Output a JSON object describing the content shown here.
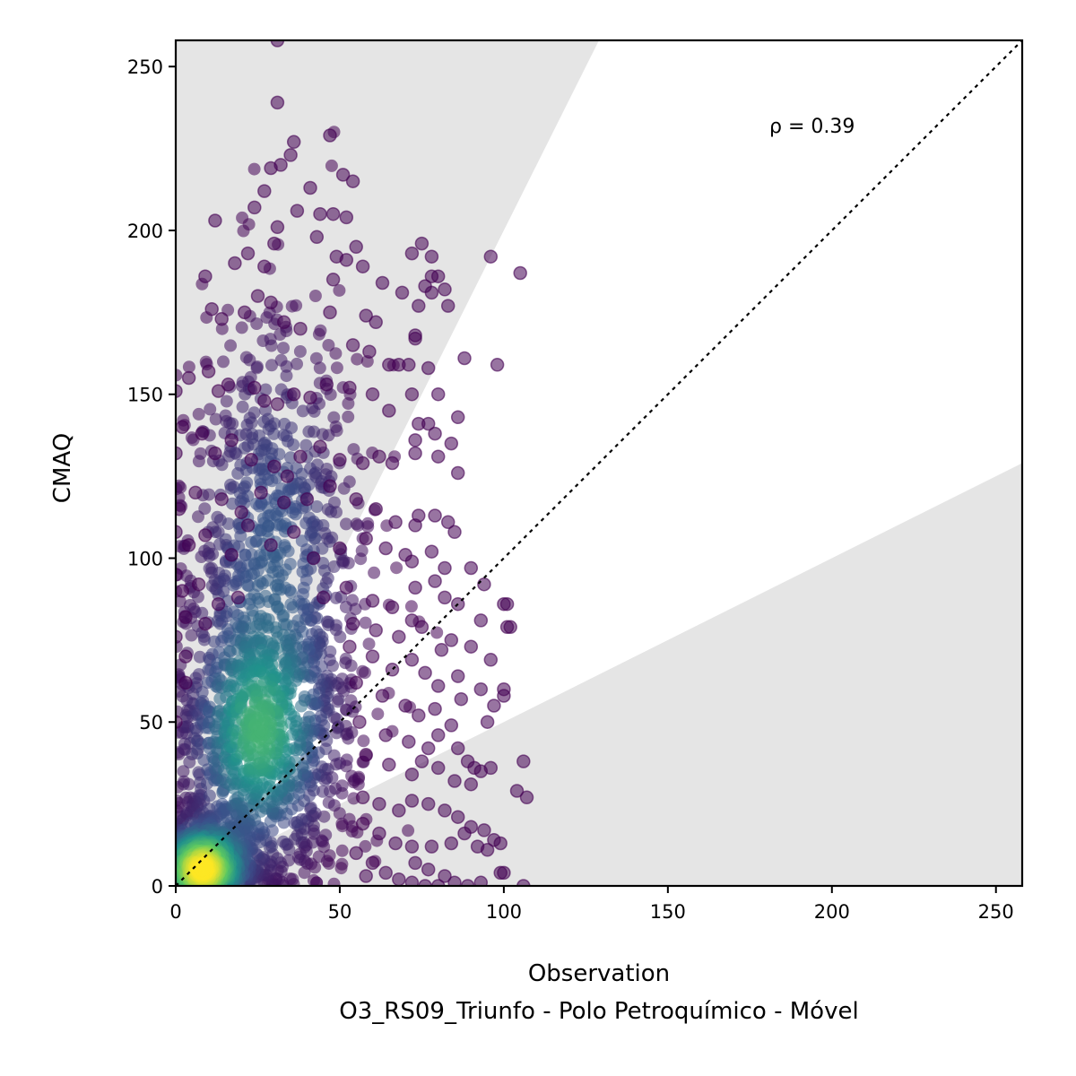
{
  "chart_data": {
    "type": "scatter",
    "title": "",
    "xlabel": "Observation",
    "subtitle": "O3_RS09_Triunfo - Polo Petroquímico - Móvel",
    "ylabel": "CMAQ",
    "xlim": [
      0,
      258
    ],
    "ylim": [
      0,
      258
    ],
    "xticks": [
      0,
      50,
      100,
      150,
      200,
      250
    ],
    "yticks": [
      0,
      50,
      100,
      150,
      200,
      250
    ],
    "annotation": "ρ = 0.39",
    "reference_line": {
      "style": "dotted",
      "slope": 1,
      "color": "#000000"
    },
    "acceptance_band": {
      "lower_slope": 0.5,
      "upper_slope": 2,
      "shaded_outside": true,
      "shade_color": "#e5e5e5"
    },
    "colormap": "viridis",
    "colormap_stops": [
      "#440154",
      "#3b528b",
      "#21918c",
      "#5ec962",
      "#fde725"
    ],
    "density_centers": [
      {
        "x": 8,
        "y": 5,
        "density": 1.0
      },
      {
        "x": 25,
        "y": 45,
        "density": 0.55
      },
      {
        "x": 30,
        "y": 100,
        "density": 0.3
      }
    ],
    "points": [
      [
        31,
        258
      ],
      [
        31,
        239
      ],
      [
        36,
        227
      ],
      [
        35,
        223
      ],
      [
        47,
        229
      ],
      [
        29,
        219
      ],
      [
        32,
        220
      ],
      [
        51,
        217
      ],
      [
        54,
        215
      ],
      [
        41,
        213
      ],
      [
        27,
        212
      ],
      [
        24,
        207
      ],
      [
        37,
        206
      ],
      [
        44,
        205
      ],
      [
        48,
        205
      ],
      [
        52,
        204
      ],
      [
        12,
        203
      ],
      [
        31,
        201
      ],
      [
        30,
        196
      ],
      [
        22,
        193
      ],
      [
        27,
        189
      ],
      [
        18,
        190
      ],
      [
        43,
        198
      ],
      [
        55,
        195
      ],
      [
        49,
        192
      ],
      [
        52,
        191
      ],
      [
        57,
        189
      ],
      [
        75,
        196
      ],
      [
        72,
        193
      ],
      [
        78,
        192
      ],
      [
        96,
        192
      ],
      [
        105,
        187
      ],
      [
        48,
        185
      ],
      [
        63,
        184
      ],
      [
        82,
        182
      ],
      [
        69,
        181
      ],
      [
        78,
        186
      ],
      [
        80,
        186
      ],
      [
        9,
        186
      ],
      [
        14,
        173
      ],
      [
        11,
        176
      ],
      [
        21,
        175
      ],
      [
        25,
        180
      ],
      [
        29,
        178
      ],
      [
        33,
        172
      ],
      [
        38,
        170
      ],
      [
        47,
        175
      ],
      [
        58,
        174
      ],
      [
        61,
        172
      ],
      [
        73,
        167
      ],
      [
        73,
        168
      ],
      [
        83,
        177
      ],
      [
        74,
        177
      ],
      [
        78,
        181
      ],
      [
        76,
        183
      ],
      [
        54,
        165
      ],
      [
        59,
        163
      ],
      [
        65,
        159
      ],
      [
        68,
        159
      ],
      [
        71,
        159
      ],
      [
        77,
        158
      ],
      [
        88,
        161
      ],
      [
        98,
        159
      ],
      [
        4,
        155
      ],
      [
        10,
        157
      ],
      [
        13,
        151
      ],
      [
        16,
        153
      ],
      [
        24,
        152
      ],
      [
        27,
        148
      ],
      [
        31,
        147
      ],
      [
        36,
        150
      ],
      [
        41,
        149
      ],
      [
        46,
        153
      ],
      [
        53,
        152
      ],
      [
        60,
        150
      ],
      [
        72,
        150
      ],
      [
        80,
        150
      ],
      [
        65,
        145
      ],
      [
        74,
        141
      ],
      [
        77,
        141
      ],
      [
        79,
        138
      ],
      [
        86,
        143
      ],
      [
        84,
        135
      ],
      [
        0,
        151
      ],
      [
        2,
        140
      ],
      [
        8,
        138
      ],
      [
        12,
        132
      ],
      [
        17,
        136
      ],
      [
        23,
        130
      ],
      [
        30,
        128
      ],
      [
        34,
        125
      ],
      [
        38,
        131
      ],
      [
        44,
        134
      ],
      [
        50,
        130
      ],
      [
        57,
        129
      ],
      [
        62,
        131
      ],
      [
        66,
        129
      ],
      [
        73,
        132
      ],
      [
        80,
        131
      ],
      [
        86,
        126
      ],
      [
        73,
        136
      ],
      [
        0,
        132
      ],
      [
        1,
        115
      ],
      [
        6,
        120
      ],
      [
        14,
        118
      ],
      [
        20,
        114
      ],
      [
        26,
        120
      ],
      [
        33,
        117
      ],
      [
        40,
        118
      ],
      [
        47,
        122
      ],
      [
        55,
        118
      ],
      [
        61,
        115
      ],
      [
        67,
        111
      ],
      [
        73,
        110
      ],
      [
        74,
        113
      ],
      [
        79,
        113
      ],
      [
        83,
        111
      ],
      [
        0,
        108
      ],
      [
        4,
        104
      ],
      [
        9,
        107
      ],
      [
        17,
        101
      ],
      [
        22,
        110
      ],
      [
        29,
        104
      ],
      [
        36,
        108
      ],
      [
        42,
        100
      ],
      [
        50,
        103
      ],
      [
        58,
        106
      ],
      [
        64,
        103
      ],
      [
        70,
        101
      ],
      [
        78,
        102
      ],
      [
        85,
        108
      ],
      [
        90,
        97
      ],
      [
        72,
        99
      ],
      [
        82,
        97
      ],
      [
        0,
        95
      ],
      [
        2,
        90
      ],
      [
        7,
        92
      ],
      [
        13,
        86
      ],
      [
        19,
        88
      ],
      [
        45,
        88
      ],
      [
        52,
        91
      ],
      [
        60,
        87
      ],
      [
        66,
        85
      ],
      [
        73,
        91
      ],
      [
        79,
        93
      ],
      [
        86,
        86
      ],
      [
        94,
        92
      ],
      [
        100,
        86
      ],
      [
        101,
        86
      ],
      [
        101,
        79
      ],
      [
        102,
        79
      ],
      [
        93,
        81
      ],
      [
        82,
        88
      ],
      [
        3,
        82
      ],
      [
        9,
        80
      ],
      [
        54,
        80
      ],
      [
        61,
        78
      ],
      [
        68,
        76
      ],
      [
        72,
        81
      ],
      [
        75,
        79
      ],
      [
        81,
        72
      ],
      [
        84,
        75
      ],
      [
        90,
        73
      ],
      [
        96,
        69
      ],
      [
        0,
        76
      ],
      [
        3,
        70
      ],
      [
        53,
        73
      ],
      [
        60,
        70
      ],
      [
        66,
        66
      ],
      [
        72,
        69
      ],
      [
        76,
        65
      ],
      [
        80,
        61
      ],
      [
        86,
        64
      ],
      [
        93,
        60
      ],
      [
        100,
        60
      ],
      [
        100,
        58
      ],
      [
        97,
        55
      ],
      [
        3,
        62
      ],
      [
        55,
        62
      ],
      [
        63,
        58
      ],
      [
        70,
        55
      ],
      [
        74,
        52
      ],
      [
        79,
        54
      ],
      [
        84,
        49
      ],
      [
        95,
        50
      ],
      [
        87,
        57
      ],
      [
        0,
        50
      ],
      [
        56,
        50
      ],
      [
        64,
        46
      ],
      [
        71,
        44
      ],
      [
        77,
        42
      ],
      [
        80,
        46
      ],
      [
        86,
        42
      ],
      [
        89,
        38
      ],
      [
        91,
        36
      ],
      [
        96,
        36
      ],
      [
        106,
        38
      ],
      [
        104,
        29
      ],
      [
        107,
        27
      ],
      [
        58,
        40
      ],
      [
        65,
        37
      ],
      [
        72,
        34
      ],
      [
        75,
        38
      ],
      [
        80,
        36
      ],
      [
        85,
        32
      ],
      [
        90,
        31
      ],
      [
        93,
        35
      ],
      [
        57,
        27
      ],
      [
        62,
        25
      ],
      [
        68,
        23
      ],
      [
        72,
        26
      ],
      [
        77,
        25
      ],
      [
        82,
        23
      ],
      [
        86,
        21
      ],
      [
        90,
        18
      ],
      [
        94,
        17
      ],
      [
        97,
        14
      ],
      [
        99,
        13
      ],
      [
        57,
        19
      ],
      [
        62,
        16
      ],
      [
        67,
        13
      ],
      [
        72,
        12
      ],
      [
        78,
        12
      ],
      [
        84,
        13
      ],
      [
        88,
        16
      ],
      [
        92,
        12
      ],
      [
        95,
        11
      ],
      [
        73,
        7
      ],
      [
        77,
        5
      ],
      [
        82,
        3
      ],
      [
        85,
        1
      ],
      [
        89,
        0
      ],
      [
        93,
        1
      ],
      [
        99,
        4
      ],
      [
        100,
        4
      ],
      [
        106,
        0
      ],
      [
        60,
        7
      ],
      [
        64,
        4
      ],
      [
        68,
        2
      ],
      [
        72,
        1
      ],
      [
        76,
        0
      ],
      [
        80,
        0
      ],
      [
        55,
        10
      ],
      [
        58,
        3
      ]
    ]
  }
}
